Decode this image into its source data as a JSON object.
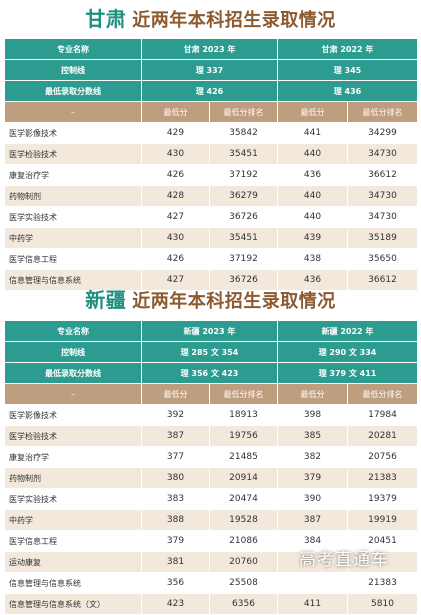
{
  "gansu": {
    "title_region": "甘肃",
    "title_rest": "近两年本科招生录取情况",
    "header": {
      "label": "专业名称",
      "col1": "甘肃 2023 年",
      "col2": "甘肃 2022 年"
    },
    "control": {
      "label": "控制线",
      "v1": "理 337",
      "v2": "理 345"
    },
    "min_line": {
      "label": "最低录取分数线",
      "v1": "理 426",
      "v2": "理 436"
    },
    "subheader": {
      "dash": "–",
      "a": "最低分",
      "b": "最低分排名",
      "c": "最低分",
      "d": "最低分排名"
    },
    "rows": [
      {
        "major": "医学影像技术",
        "s23": "429",
        "r23": "35842",
        "s22": "441",
        "r22": "34299"
      },
      {
        "major": "医学检验技术",
        "s23": "430",
        "r23": "35451",
        "s22": "440",
        "r22": "34730"
      },
      {
        "major": "康复治疗学",
        "s23": "426",
        "r23": "37192",
        "s22": "436",
        "r22": "36612"
      },
      {
        "major": "药物制剂",
        "s23": "428",
        "r23": "36279",
        "s22": "440",
        "r22": "34730"
      },
      {
        "major": "医学实验技术",
        "s23": "427",
        "r23": "36726",
        "s22": "440",
        "r22": "34730"
      },
      {
        "major": "中药学",
        "s23": "430",
        "r23": "35451",
        "s22": "439",
        "r22": "35189"
      },
      {
        "major": "医学信息工程",
        "s23": "426",
        "r23": "37192",
        "s22": "438",
        "r22": "35650"
      },
      {
        "major": "信息管理与信息系统",
        "s23": "427",
        "r23": "36726",
        "s22": "436",
        "r22": "36612"
      }
    ]
  },
  "xinjiang": {
    "title_region": "新疆",
    "title_rest": "近两年本科招生录取情况",
    "header": {
      "label": "专业名称",
      "col1": "新疆 2023 年",
      "col2": "新疆 2022 年"
    },
    "control": {
      "label": "控制线",
      "v1": "理 285 文 354",
      "v2": "理 290 文 334"
    },
    "min_line": {
      "label": "最低录取分数线",
      "v1": "理 356 文 423",
      "v2": "理 379 文 411"
    },
    "subheader": {
      "dash": "–",
      "a": "最低分",
      "b": "最低分排名",
      "c": "最低分",
      "d": "最低分排名"
    },
    "rows": [
      {
        "major": "医学影像技术",
        "s23": "392",
        "r23": "18913",
        "s22": "398",
        "r22": "17984"
      },
      {
        "major": "医学检验技术",
        "s23": "387",
        "r23": "19756",
        "s22": "385",
        "r22": "20281"
      },
      {
        "major": "康复治疗学",
        "s23": "377",
        "r23": "21485",
        "s22": "382",
        "r22": "20756"
      },
      {
        "major": "药物制剂",
        "s23": "380",
        "r23": "20914",
        "s22": "379",
        "r22": "21383"
      },
      {
        "major": "医学实验技术",
        "s23": "383",
        "r23": "20474",
        "s22": "390",
        "r22": "19379"
      },
      {
        "major": "中药学",
        "s23": "388",
        "r23": "19528",
        "s22": "387",
        "r22": "19919"
      },
      {
        "major": "医学信息工程",
        "s23": "379",
        "r23": "21086",
        "s22": "384",
        "r22": "20451"
      },
      {
        "major": "运动康复",
        "s23": "381",
        "r23": "20760",
        "s22": "",
        "r22": ""
      },
      {
        "major": "信息管理与信息系统",
        "s23": "356",
        "r23": "25508",
        "s22": "",
        "r22": "21383"
      },
      {
        "major": "信息管理与信息系统（文）",
        "s23": "423",
        "r23": "6356",
        "s22": "411",
        "r22": "5810"
      }
    ]
  },
  "watermark": "高考直通车"
}
